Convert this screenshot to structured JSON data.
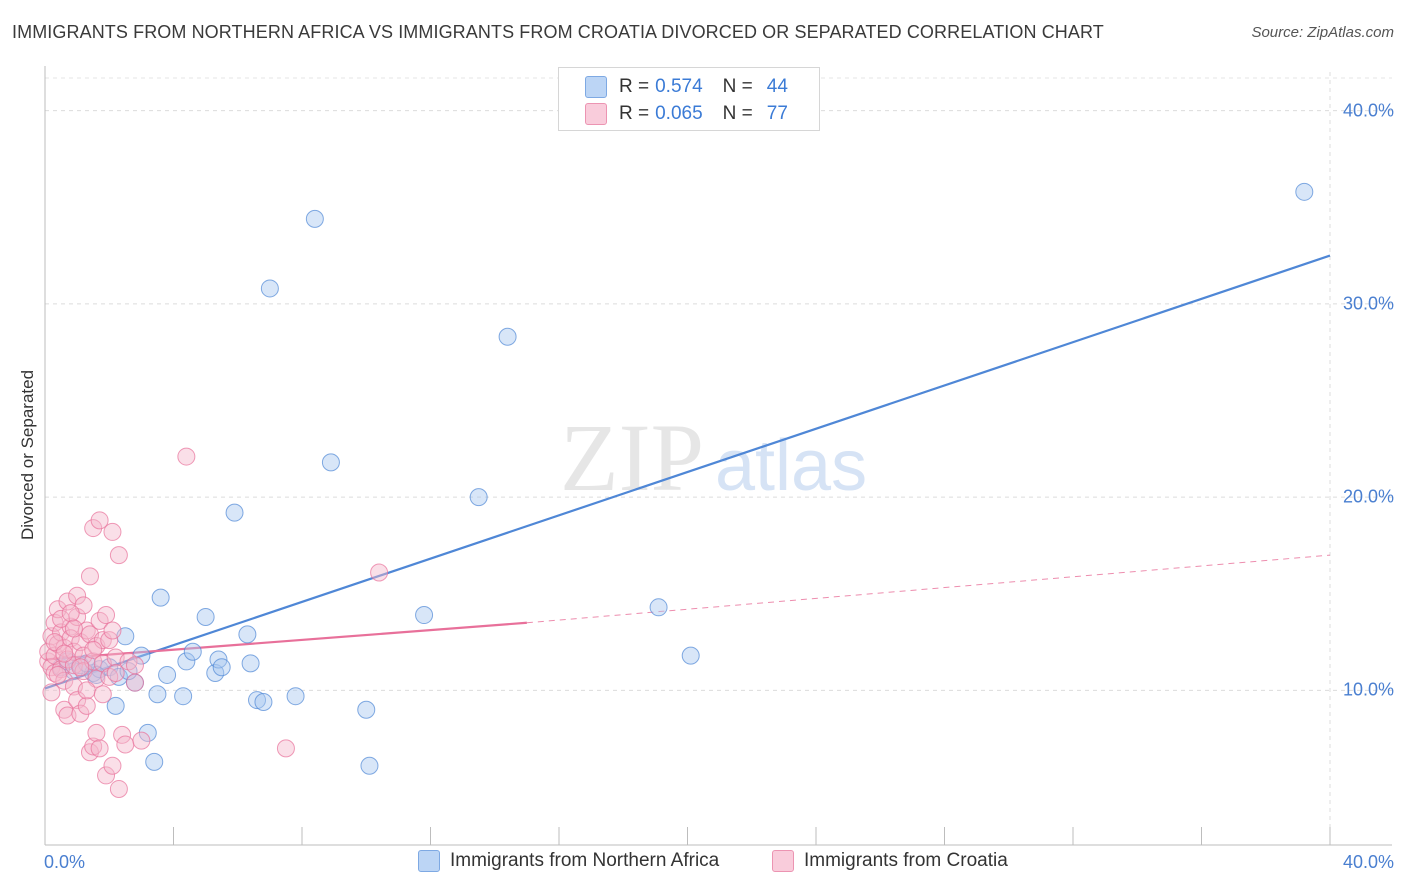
{
  "title": "IMMIGRANTS FROM NORTHERN AFRICA VS IMMIGRANTS FROM CROATIA DIVORCED OR SEPARATED CORRELATION CHART",
  "source": "Source: ZipAtlas.com",
  "watermark": {
    "zip": "ZIP",
    "atlas": "atlas"
  },
  "legend": {
    "rows": [
      {
        "r_label": "R =",
        "r_value": "0.574",
        "n_label": "N =",
        "n_value": "44",
        "color": "#a8c8f0"
      },
      {
        "r_label": "R =",
        "r_value": "0.065",
        "n_label": "N =",
        "n_value": "77",
        "color": "#f5b8cc"
      }
    ]
  },
  "bottom_legend": [
    {
      "label": "Immigrants from Northern Africa",
      "color": "#a8c8f0"
    },
    {
      "label": "Immigrants from Croatia",
      "color": "#f5b8cc"
    }
  ],
  "chart_data": {
    "type": "scatter",
    "ylabel": "Divorced or Separated",
    "xlim": [
      0,
      40
    ],
    "ylim": [
      2,
      42
    ],
    "x_tick_labels": [
      "0.0%",
      "40.0%"
    ],
    "y_ticks": [
      10,
      20,
      30,
      40
    ],
    "y_tick_labels": [
      "10.0%",
      "20.0%",
      "30.0%",
      "40.0%"
    ],
    "grid": true,
    "series": [
      {
        "name": "Immigrants from Northern Africa",
        "color": "#4f87d6",
        "fill": "#a8c8f0",
        "trend": {
          "x": [
            0.0,
            40.0
          ],
          "y": [
            10.1,
            32.5
          ],
          "style": "solid"
        },
        "points": [
          [
            0.5,
            11.2
          ],
          [
            0.7,
            11.5
          ],
          [
            0.9,
            11.0
          ],
          [
            1.1,
            11.3
          ],
          [
            1.5,
            10.9
          ],
          [
            1.7,
            11.1
          ],
          [
            2.0,
            11.2
          ],
          [
            1.6,
            10.8
          ],
          [
            2.3,
            10.7
          ],
          [
            2.5,
            12.8
          ],
          [
            2.8,
            10.4
          ],
          [
            3.0,
            11.8
          ],
          [
            3.2,
            7.8
          ],
          [
            3.4,
            6.3
          ],
          [
            3.6,
            14.8
          ],
          [
            3.8,
            10.8
          ],
          [
            4.3,
            9.7
          ],
          [
            4.4,
            11.5
          ],
          [
            4.6,
            12.0
          ],
          [
            5.0,
            13.8
          ],
          [
            5.3,
            10.9
          ],
          [
            5.4,
            11.6
          ],
          [
            5.5,
            11.2
          ],
          [
            5.9,
            19.2
          ],
          [
            6.3,
            12.9
          ],
          [
            6.4,
            11.4
          ],
          [
            6.6,
            9.5
          ],
          [
            6.8,
            9.4
          ],
          [
            7.0,
            30.8
          ],
          [
            7.8,
            9.7
          ],
          [
            8.4,
            34.4
          ],
          [
            8.9,
            21.8
          ],
          [
            10.0,
            9.0
          ],
          [
            10.1,
            6.1
          ],
          [
            11.8,
            13.9
          ],
          [
            13.5,
            20.0
          ],
          [
            14.4,
            28.3
          ],
          [
            19.1,
            14.3
          ],
          [
            20.1,
            11.8
          ],
          [
            39.2,
            35.8
          ],
          [
            2.2,
            9.2
          ],
          [
            3.5,
            9.8
          ],
          [
            1.3,
            11.4
          ],
          [
            2.6,
            11.0
          ]
        ]
      },
      {
        "name": "Immigrants from Croatia",
        "color": "#e8709a",
        "fill": "#f5b8cc",
        "trend": {
          "x": [
            0.0,
            15.0
          ],
          "y": [
            11.6,
            13.5
          ],
          "style": "solid"
        },
        "trend_extension": {
          "x": [
            15.0,
            40.0
          ],
          "y": [
            13.5,
            17.0
          ],
          "style": "dashed"
        },
        "points": [
          [
            0.1,
            11.5
          ],
          [
            0.1,
            12.0
          ],
          [
            0.2,
            11.2
          ],
          [
            0.2,
            12.8
          ],
          [
            0.3,
            10.9
          ],
          [
            0.3,
            13.5
          ],
          [
            0.3,
            11.8
          ],
          [
            0.4,
            12.4
          ],
          [
            0.4,
            14.2
          ],
          [
            0.5,
            11.1
          ],
          [
            0.5,
            13.0
          ],
          [
            0.6,
            12.2
          ],
          [
            0.6,
            10.5
          ],
          [
            0.6,
            9.0
          ],
          [
            0.7,
            14.6
          ],
          [
            0.7,
            11.6
          ],
          [
            0.7,
            8.7
          ],
          [
            0.8,
            13.3
          ],
          [
            0.8,
            12.7
          ],
          [
            0.9,
            12.0
          ],
          [
            0.9,
            11.3
          ],
          [
            0.9,
            10.2
          ],
          [
            1.0,
            14.9
          ],
          [
            1.0,
            13.8
          ],
          [
            1.0,
            9.5
          ],
          [
            1.1,
            12.5
          ],
          [
            1.1,
            8.8
          ],
          [
            1.2,
            14.4
          ],
          [
            1.2,
            11.8
          ],
          [
            1.2,
            11.0
          ],
          [
            1.3,
            13.1
          ],
          [
            1.3,
            9.2
          ],
          [
            1.4,
            12.9
          ],
          [
            1.4,
            15.9
          ],
          [
            1.4,
            6.8
          ],
          [
            1.5,
            18.4
          ],
          [
            1.5,
            11.5
          ],
          [
            1.5,
            7.1
          ],
          [
            1.6,
            12.3
          ],
          [
            1.6,
            10.6
          ],
          [
            1.6,
            7.8
          ],
          [
            1.7,
            13.6
          ],
          [
            1.7,
            18.8
          ],
          [
            1.7,
            7.0
          ],
          [
            1.8,
            11.4
          ],
          [
            1.8,
            12.6
          ],
          [
            1.9,
            13.9
          ],
          [
            1.9,
            5.6
          ],
          [
            2.0,
            12.6
          ],
          [
            2.0,
            10.7
          ],
          [
            2.1,
            18.2
          ],
          [
            2.1,
            13.1
          ],
          [
            2.1,
            6.1
          ],
          [
            2.2,
            11.7
          ],
          [
            2.3,
            17.0
          ],
          [
            2.3,
            4.9
          ],
          [
            2.4,
            7.7
          ],
          [
            2.5,
            7.2
          ],
          [
            2.6,
            11.5
          ],
          [
            2.8,
            10.4
          ],
          [
            2.8,
            11.3
          ],
          [
            3.0,
            7.4
          ],
          [
            4.4,
            22.1
          ],
          [
            7.5,
            7.0
          ],
          [
            10.4,
            16.1
          ],
          [
            0.2,
            9.9
          ],
          [
            0.4,
            10.8
          ],
          [
            0.5,
            13.7
          ],
          [
            0.8,
            14.0
          ],
          [
            1.1,
            11.2
          ],
          [
            1.3,
            10.0
          ],
          [
            0.3,
            12.5
          ],
          [
            0.6,
            11.9
          ],
          [
            0.9,
            13.2
          ],
          [
            1.8,
            9.8
          ],
          [
            1.5,
            12.1
          ],
          [
            2.2,
            10.9
          ]
        ]
      }
    ]
  }
}
